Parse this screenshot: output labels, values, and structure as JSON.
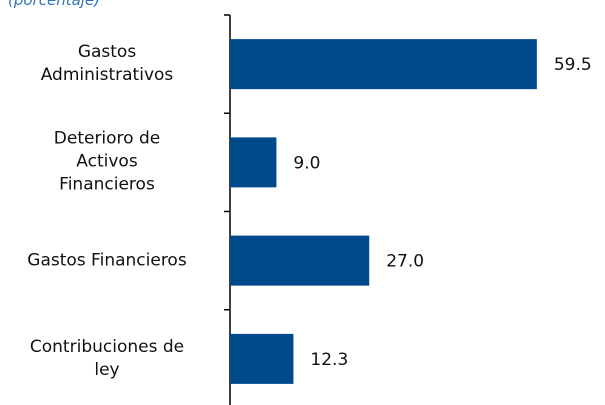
{
  "chart_data": {
    "type": "barh",
    "subtitle": "(porcentaje)",
    "categories": [
      "Gastos\nAdministrativos",
      "Deterioro de\nActivos\nFinancieros",
      "Gastos Financieros",
      "Contribuciones de\nley"
    ],
    "values": [
      59.5,
      9.0,
      27.0,
      12.3
    ],
    "value_labels": [
      "59.5",
      "9.0",
      "27.0",
      "12.3"
    ],
    "color": "#004a8b",
    "xlim": [
      0,
      70
    ]
  }
}
